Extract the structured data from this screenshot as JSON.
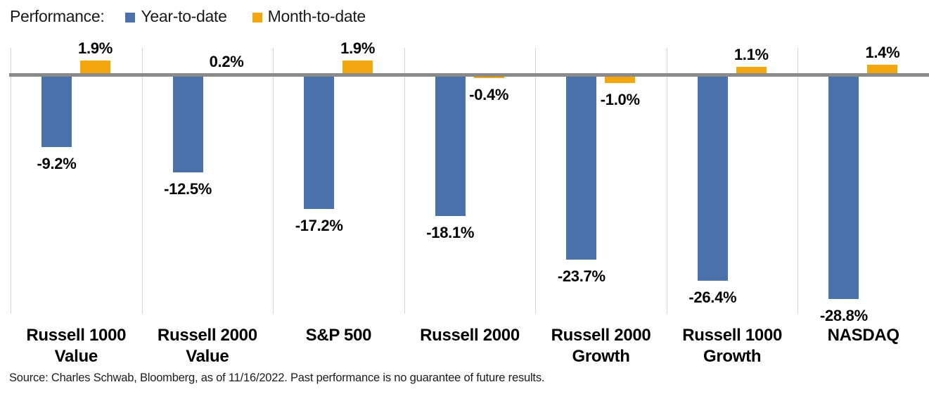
{
  "legend": {
    "title": "Performance:",
    "items": [
      {
        "label": "Year-to-date",
        "color": "#4A71AA"
      },
      {
        "label": "Month-to-date",
        "color": "#F3A60D"
      }
    ]
  },
  "source_note": "Source: Charles Schwab, Bloomberg, as of 11/16/2022.  Past performance is no guarantee of future results.",
  "chart_data": {
    "type": "bar",
    "title": "",
    "xlabel": "",
    "ylabel": "",
    "unit": "%",
    "baseline": 0,
    "grid": "vertical-separators-only",
    "legend_position": "top-left",
    "axis_color": "#8A8A8A",
    "gridline_color": "#D6D6D6",
    "categories": [
      "Russell 1000 Value",
      "Russell 2000 Value",
      "S&P 500",
      "Russell 2000",
      "Russell 2000 Growth",
      "Russell 1000 Growth",
      "NASDAQ"
    ],
    "series": [
      {
        "name": "Year-to-date",
        "color": "#4A71AA",
        "values": [
          -9.2,
          -12.5,
          -17.2,
          -18.1,
          -23.7,
          -26.4,
          -28.8
        ],
        "labels": [
          "-9.2%",
          "-12.5%",
          "-17.2%",
          "-18.1%",
          "-23.7%",
          "-26.4%",
          "-28.8%"
        ]
      },
      {
        "name": "Month-to-date",
        "color": "#F3A60D",
        "values": [
          1.9,
          0.2,
          1.9,
          -0.4,
          -1.0,
          1.1,
          1.4
        ],
        "labels": [
          "1.9%",
          "0.2%",
          "1.9%",
          "-0.4%",
          "-1.0%",
          "1.1%",
          "1.4%"
        ]
      }
    ]
  }
}
